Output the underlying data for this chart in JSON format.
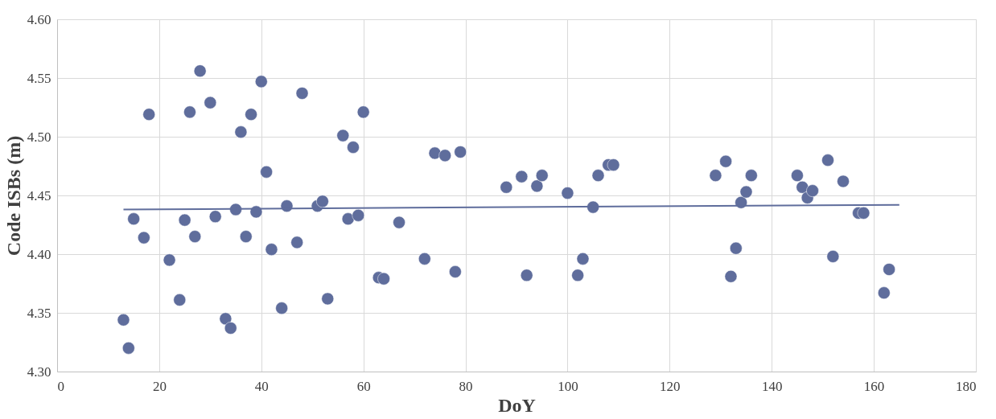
{
  "chart_data": {
    "type": "scatter",
    "xlabel": "DoY",
    "ylabel": "Code ISBs (m)",
    "xlim": [
      0,
      180
    ],
    "xticks": [
      0,
      20,
      40,
      60,
      80,
      100,
      120,
      140,
      160,
      180
    ],
    "ylim": [
      4.3,
      4.6
    ],
    "yticks": [
      {
        "value": 4.3,
        "label": "4.30"
      },
      {
        "value": 4.35,
        "label": "4.35"
      },
      {
        "value": 4.4,
        "label": "4.40"
      },
      {
        "value": 4.45,
        "label": "4.45"
      },
      {
        "value": 4.5,
        "label": "4.50"
      },
      {
        "value": 4.55,
        "label": "4.55"
      },
      {
        "value": 4.6,
        "label": "4.60"
      }
    ],
    "grid": true,
    "series": [
      {
        "type": "scatter",
        "color": "#5f6d9c",
        "marker": "circle",
        "x": [
          13,
          14,
          15,
          17,
          18,
          22,
          24,
          25,
          26,
          27,
          28,
          30,
          31,
          33,
          34,
          35,
          36,
          37,
          38,
          39,
          40,
          41,
          42,
          44,
          45,
          47,
          48,
          51,
          52,
          53,
          56,
          57,
          58,
          59,
          60,
          63,
          64,
          67,
          72,
          74,
          76,
          78,
          79,
          88,
          91,
          92,
          94,
          95,
          100,
          102,
          103,
          105,
          106,
          108,
          109,
          129,
          131,
          132,
          133,
          134,
          135,
          136,
          145,
          146,
          147,
          148,
          151,
          152,
          154,
          157,
          158,
          162,
          163
        ],
        "values": [
          4.344,
          4.32,
          4.43,
          4.414,
          4.519,
          4.395,
          4.361,
          4.429,
          4.521,
          4.415,
          4.556,
          4.529,
          4.432,
          4.345,
          4.337,
          4.438,
          4.504,
          4.415,
          4.519,
          4.436,
          4.547,
          4.47,
          4.404,
          4.354,
          4.441,
          4.41,
          4.537,
          4.441,
          4.445,
          4.362,
          4.501,
          4.43,
          4.491,
          4.433,
          4.521,
          4.38,
          4.379,
          4.427,
          4.396,
          4.486,
          4.484,
          4.385,
          4.487,
          4.457,
          4.466,
          4.382,
          4.458,
          4.467,
          4.452,
          4.382,
          4.396,
          4.44,
          4.467,
          4.476,
          4.476,
          4.467,
          4.479,
          4.381,
          4.405,
          4.444,
          4.453,
          4.467,
          4.467,
          4.457,
          4.448,
          4.454,
          4.48,
          4.398,
          4.462,
          4.435,
          4.435,
          4.367,
          4.387
        ]
      },
      {
        "type": "line",
        "color": "#5f6d9c",
        "marker": "none",
        "line_style": "solid",
        "x": [
          13,
          165
        ],
        "values": [
          4.438,
          4.442
        ]
      }
    ]
  }
}
